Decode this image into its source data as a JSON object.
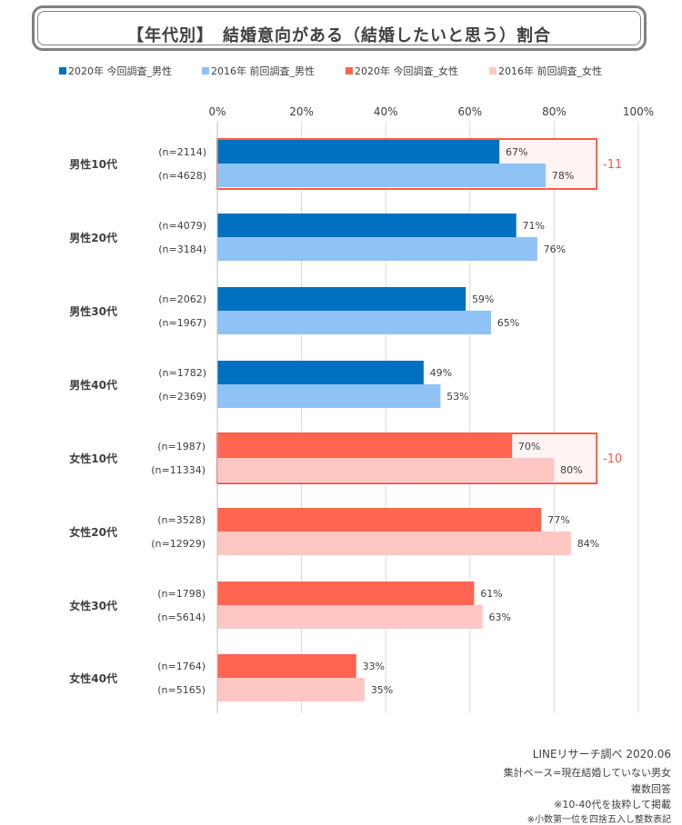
{
  "header": {
    "title": "【年代別】　結婚意向がある（結婚したいと思う）割合"
  },
  "colors": {
    "male2020": "#0070C0",
    "male2016": "#8FC3F5",
    "female2020": "#FF6652",
    "female2016": "#FFC7C4",
    "highlight": "#FF5A45",
    "grid": "#D9D9D9"
  },
  "chart_data": {
    "type": "bar",
    "orientation": "horizontal",
    "title": "【年代別】　結婚意向がある（結婚したいと思う）割合",
    "xlim": [
      0,
      100
    ],
    "x_ticks": [
      "0%",
      "20%",
      "40%",
      "60%",
      "80%",
      "100%"
    ],
    "legend": [
      {
        "label": "2020年 今回調査_男性",
        "color_key": "male2020"
      },
      {
        "label": "2016年 前回調査_男性",
        "color_key": "male2016"
      },
      {
        "label": "2020年 今回調査_女性",
        "color_key": "female2020"
      },
      {
        "label": "2016年 前回調査_女性",
        "color_key": "female2016"
      }
    ],
    "categories": [
      {
        "label": "男性10代",
        "gender": "male",
        "bars": [
          {
            "n": "(n=2114)",
            "value": 67,
            "label": "67%"
          },
          {
            "n": "(n=4628)",
            "value": 78,
            "label": "78%"
          }
        ],
        "change": "-11"
      },
      {
        "label": "男性20代",
        "gender": "male",
        "bars": [
          {
            "n": "(n=4079)",
            "value": 71,
            "label": "71%"
          },
          {
            "n": "(n=3184)",
            "value": 76,
            "label": "76%"
          }
        ]
      },
      {
        "label": "男性30代",
        "gender": "male",
        "bars": [
          {
            "n": "(n=2062)",
            "value": 59,
            "label": "59%"
          },
          {
            "n": "(n=1967)",
            "value": 65,
            "label": "65%"
          }
        ]
      },
      {
        "label": "男性40代",
        "gender": "male",
        "bars": [
          {
            "n": "(n=1782)",
            "value": 49,
            "label": "49%"
          },
          {
            "n": "(n=2369)",
            "value": 53,
            "label": "53%"
          }
        ]
      },
      {
        "label": "女性10代",
        "gender": "female",
        "bars": [
          {
            "n": "(n=1987)",
            "value": 70,
            "label": "70%"
          },
          {
            "n": "(n=11334)",
            "value": 80,
            "label": "80%"
          }
        ],
        "change": "-10"
      },
      {
        "label": "女性20代",
        "gender": "female",
        "bars": [
          {
            "n": "(n=3528)",
            "value": 77,
            "label": "77%"
          },
          {
            "n": "(n=12929)",
            "value": 84,
            "label": "84%"
          }
        ]
      },
      {
        "label": "女性30代",
        "gender": "female",
        "bars": [
          {
            "n": "(n=1798)",
            "value": 61,
            "label": "61%"
          },
          {
            "n": "(n=5614)",
            "value": 63,
            "label": "63%"
          }
        ]
      },
      {
        "label": "女性40代",
        "gender": "female",
        "bars": [
          {
            "n": "(n=1764)",
            "value": 33,
            "label": "33%"
          },
          {
            "n": "(n=5165)",
            "value": 35,
            "label": "35%"
          }
        ]
      }
    ]
  },
  "footer": {
    "source": "LINEリサーチ調べ 2020.06",
    "note1": "集計ベース=現在結婚していない男女",
    "note2": "複数回答",
    "note3": "※10-40代を抜粋して掲載",
    "note4": "※小数第一位を四捨五入し整数表記"
  }
}
